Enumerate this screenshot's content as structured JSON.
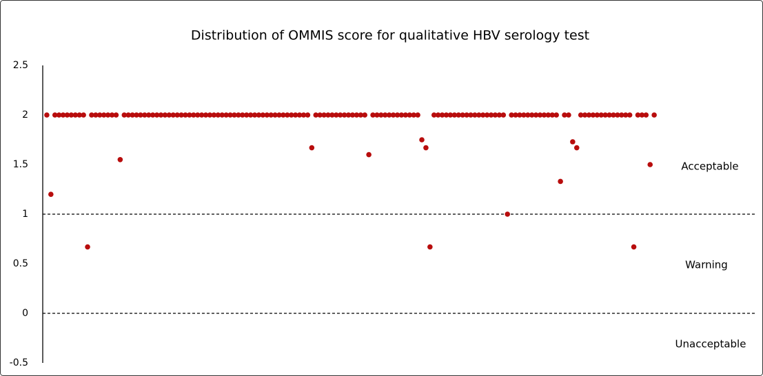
{
  "chart_data": {
    "type": "scatter",
    "title": "Distribution of OMMIS score for qualitative HBV serology test",
    "annotations": [
      "Acceptable",
      "Warning",
      "Unacceptable"
    ],
    "thresholds": [
      1,
      0
    ],
    "color": "#b80d0d",
    "xlim": [
      0,
      175
    ],
    "ylim": [
      -0.5,
      2.5
    ],
    "yticks": [
      2.5,
      2,
      1.5,
      1,
      0.5,
      0,
      -0.5
    ],
    "x": [
      1,
      2,
      3,
      4,
      5,
      6,
      7,
      8,
      9,
      10,
      11,
      12,
      13,
      14,
      15,
      16,
      17,
      18,
      19,
      20,
      21,
      22,
      23,
      24,
      25,
      26,
      27,
      28,
      29,
      30,
      31,
      32,
      33,
      34,
      35,
      36,
      37,
      38,
      39,
      40,
      41,
      42,
      43,
      44,
      45,
      46,
      47,
      48,
      49,
      50,
      51,
      52,
      53,
      54,
      55,
      56,
      57,
      58,
      59,
      60,
      61,
      62,
      63,
      64,
      65,
      66,
      67,
      68,
      69,
      70,
      71,
      72,
      73,
      74,
      75,
      76,
      77,
      78,
      79,
      80,
      81,
      82,
      83,
      84,
      85,
      86,
      87,
      88,
      89,
      90,
      91,
      92,
      93,
      94,
      95,
      96,
      97,
      98,
      99,
      100,
      101,
      102,
      103,
      104,
      105,
      106,
      107,
      108,
      109,
      110,
      111,
      112,
      113,
      114,
      115,
      116,
      117,
      118,
      119,
      120,
      121,
      122,
      123,
      124,
      125,
      126,
      127,
      128,
      129,
      130,
      131,
      132,
      133,
      134,
      135,
      136,
      137,
      138,
      139,
      140,
      141,
      142,
      143,
      144,
      145,
      146,
      147,
      148,
      149,
      150
    ],
    "values": [
      2,
      1.2,
      2,
      2,
      2,
      2,
      2,
      2,
      2,
      2,
      0.67,
      2,
      2,
      2,
      2,
      2,
      2,
      2,
      1.55,
      2,
      2,
      2,
      2,
      2,
      2,
      2,
      2,
      2,
      2,
      2,
      2,
      2,
      2,
      2,
      2,
      2,
      2,
      2,
      2,
      2,
      2,
      2,
      2,
      2,
      2,
      2,
      2,
      2,
      2,
      2,
      2,
      2,
      2,
      2,
      2,
      2,
      2,
      2,
      2,
      2,
      2,
      2,
      2,
      2,
      2,
      1.67,
      2,
      2,
      2,
      2,
      2,
      2,
      2,
      2,
      2,
      2,
      2,
      2,
      2,
      1.6,
      2,
      2,
      2,
      2,
      2,
      2,
      2,
      2,
      2,
      2,
      2,
      2,
      1.75,
      1.67,
      0.67,
      2,
      2,
      2,
      2,
      2,
      2,
      2,
      2,
      2,
      2,
      2,
      2,
      2,
      2,
      2,
      2,
      2,
      2,
      1.0,
      2,
      2,
      2,
      2,
      2,
      2,
      2,
      2,
      2,
      2,
      2,
      2,
      1.33,
      2,
      2,
      1.73,
      1.67,
      2,
      2,
      2,
      2,
      2,
      2,
      2,
      2,
      2,
      2,
      2,
      2,
      2,
      0.67,
      2,
      2,
      2,
      1.5,
      2
    ]
  }
}
